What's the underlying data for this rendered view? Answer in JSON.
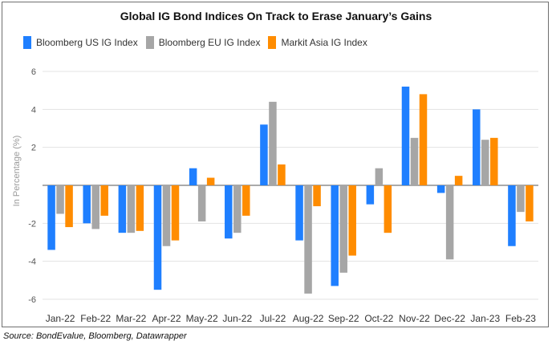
{
  "page": {
    "source": "Source: BondEvalue, Bloomberg, Datawrapper"
  },
  "chart_data": {
    "type": "bar",
    "title": "Global IG Bond Indices On Track to Erase January’s Gains",
    "xlabel": "",
    "ylabel": "In Percentage (%)",
    "ylim": [
      -6.5,
      6
    ],
    "yticks": [
      6,
      4,
      2,
      -2,
      -4,
      -6
    ],
    "grid": true,
    "legend_position": "top-left",
    "categories": [
      "Jan-22",
      "Feb-22",
      "Mar-22",
      "Apr-22",
      "May-22",
      "Jun-22",
      "Jul-22",
      "Aug-22",
      "Sep-22",
      "Oct-22",
      "Nov-22",
      "Dec-22",
      "Jan-23",
      "Feb-23"
    ],
    "series": [
      {
        "name": "Bloomberg US IG Index",
        "color": "#1f7fff",
        "values": [
          -3.4,
          -2.0,
          -2.5,
          -5.5,
          0.9,
          -2.8,
          3.2,
          -2.9,
          -5.3,
          -1.0,
          5.2,
          -0.4,
          4.0,
          -3.2
        ]
      },
      {
        "name": "Bloomberg EU IG Index",
        "color": "#a6a6a6",
        "values": [
          -1.5,
          -2.3,
          -2.5,
          -3.2,
          -1.9,
          -2.5,
          4.4,
          -5.7,
          -4.6,
          0.9,
          2.5,
          -3.9,
          2.4,
          -1.4
        ]
      },
      {
        "name": "Markit Asia IG Index",
        "color": "#ff8c00",
        "values": [
          -2.2,
          -1.6,
          -2.4,
          -2.9,
          0.4,
          -1.6,
          1.1,
          -1.1,
          -3.7,
          -2.5,
          4.8,
          0.5,
          2.5,
          -1.9
        ]
      }
    ]
  }
}
